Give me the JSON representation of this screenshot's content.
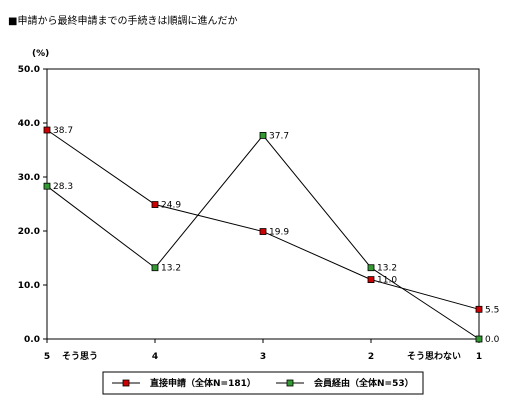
{
  "chart_data": {
    "type": "line",
    "title": "■申請から最終申請までの手続きは順調に進んだか",
    "ylabel": "(%)",
    "xlabel": "",
    "categories": [
      "5",
      "4",
      "3",
      "2",
      "1"
    ],
    "category_annotations": {
      "left": "そう思う",
      "right": "そう思わない"
    },
    "ylim": [
      0,
      50
    ],
    "yticks": [
      "0.0",
      "10.0",
      "20.0",
      "30.0",
      "40.0",
      "50.0"
    ],
    "legend_placement": "bottom",
    "series": [
      {
        "name": "直接申請（全体N=181）",
        "color": "#cc0000",
        "values": [
          38.7,
          24.9,
          19.9,
          11.0,
          5.5
        ],
        "labels": [
          "38.7",
          "24.9",
          "19.9",
          "11.0",
          "5.5"
        ]
      },
      {
        "name": "会員経由（全体N=53）",
        "color": "#339933",
        "values": [
          28.3,
          13.2,
          37.7,
          13.2,
          0.0
        ],
        "labels": [
          "28.3",
          "13.2",
          "37.7",
          "13.2",
          "0.0"
        ]
      }
    ]
  }
}
